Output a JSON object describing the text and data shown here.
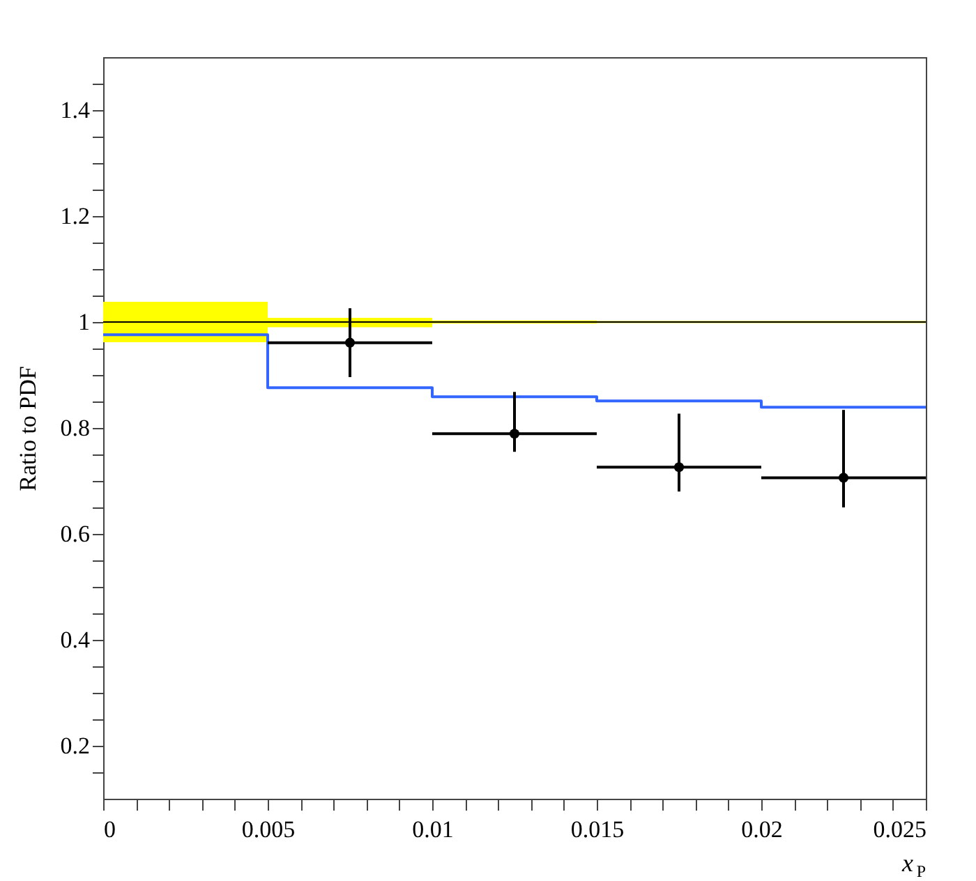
{
  "chart_data": {
    "type": "scatter",
    "xlabel": "x$_{P}$",
    "ylabel": "Ratio to PDF",
    "xlim": [
      0,
      0.025
    ],
    "ylim": [
      0.1,
      1.5
    ],
    "xticks": [
      0,
      {
        "value": 0.001,
        "label": null
      },
      {
        "value": 0.002,
        "label": null
      },
      {
        "value": 0.003,
        "label": null
      },
      {
        "value": 0.004,
        "label": null
      },
      0.005,
      {
        "value": 0.006,
        "label": null
      },
      {
        "value": 0.007,
        "label": null
      },
      {
        "value": 0.008,
        "label": null
      },
      {
        "value": 0.009,
        "label": null
      },
      0.01,
      {
        "value": 0.011,
        "label": null
      },
      {
        "value": 0.012,
        "label": null
      },
      {
        "value": 0.013,
        "label": null
      },
      {
        "value": 0.014,
        "label": null
      },
      0.015,
      {
        "value": 0.016,
        "label": null
      },
      {
        "value": 0.017,
        "label": null
      },
      {
        "value": 0.018,
        "label": null
      },
      {
        "value": 0.019,
        "label": null
      },
      0.02,
      {
        "value": 0.021,
        "label": null
      },
      {
        "value": 0.022,
        "label": null
      },
      {
        "value": 0.023,
        "label": null
      },
      {
        "value": 0.024,
        "label": null
      },
      0.025
    ],
    "yticks": [
      {
        "value": 0.15,
        "label": null
      },
      0.2,
      {
        "value": 0.25,
        "label": null
      },
      {
        "value": 0.3,
        "label": null
      },
      {
        "value": 0.35,
        "label": null
      },
      0.4,
      {
        "value": 0.45,
        "label": null
      },
      {
        "value": 0.5,
        "label": null
      },
      {
        "value": 0.55,
        "label": null
      },
      0.6,
      {
        "value": 0.65,
        "label": null
      },
      {
        "value": 0.7,
        "label": null
      },
      {
        "value": 0.75,
        "label": null
      },
      0.8,
      {
        "value": 0.85,
        "label": null
      },
      {
        "value": 0.9,
        "label": null
      },
      {
        "value": 0.95,
        "label": null
      },
      1,
      {
        "value": 1.05,
        "label": null
      },
      {
        "value": 1.1,
        "label": null
      },
      {
        "value": 1.15,
        "label": null
      },
      1.2,
      {
        "value": 1.25,
        "label": null
      },
      {
        "value": 1.3,
        "label": null
      },
      {
        "value": 1.35,
        "label": null
      },
      1.4,
      {
        "value": 1.45,
        "label": null
      }
    ],
    "grid": false,
    "series": [
      {
        "type": "step",
        "color": "#000000",
        "colors": [
          "#ffff00",
          "#ffff00",
          "#ffff00",
          "#ffff00",
          "#ffff00",
          "#ffff00"
        ],
        "x": [
          0,
          0.005,
          0.01,
          0.015,
          0.02,
          0.025
        ],
        "values": [
          1,
          1,
          1,
          1,
          1,
          1
        ],
        "lower": [
          0.962,
          0.99,
          0.997,
          0.998,
          0.998,
          0.998
        ],
        "upper": [
          1.038,
          1.008,
          1.003,
          1.002,
          1.002,
          1.002
        ]
      },
      {
        "type": "step",
        "color": "#3366ff",
        "x": [
          0,
          0.005,
          0.01,
          0.015,
          0.02,
          0.025
        ],
        "values": [
          0.976,
          0.876,
          0.859,
          0.851,
          0.839,
          0.839
        ]
      },
      {
        "color": "#000000",
        "marker": "circle",
        "x": [
          0.0075,
          0.0125,
          0.0175,
          0.0225
        ],
        "values": [
          0.961,
          0.789,
          0.726,
          0.706
        ],
        "xerrors": [
          0.0025,
          0.0025,
          0.0025,
          0.0025
        ],
        "errors": [
          [
            0.896,
            1.026
          ],
          [
            0.755,
            0.868
          ],
          [
            0.68,
            0.827
          ],
          [
            0.65,
            0.834
          ]
        ]
      }
    ]
  }
}
